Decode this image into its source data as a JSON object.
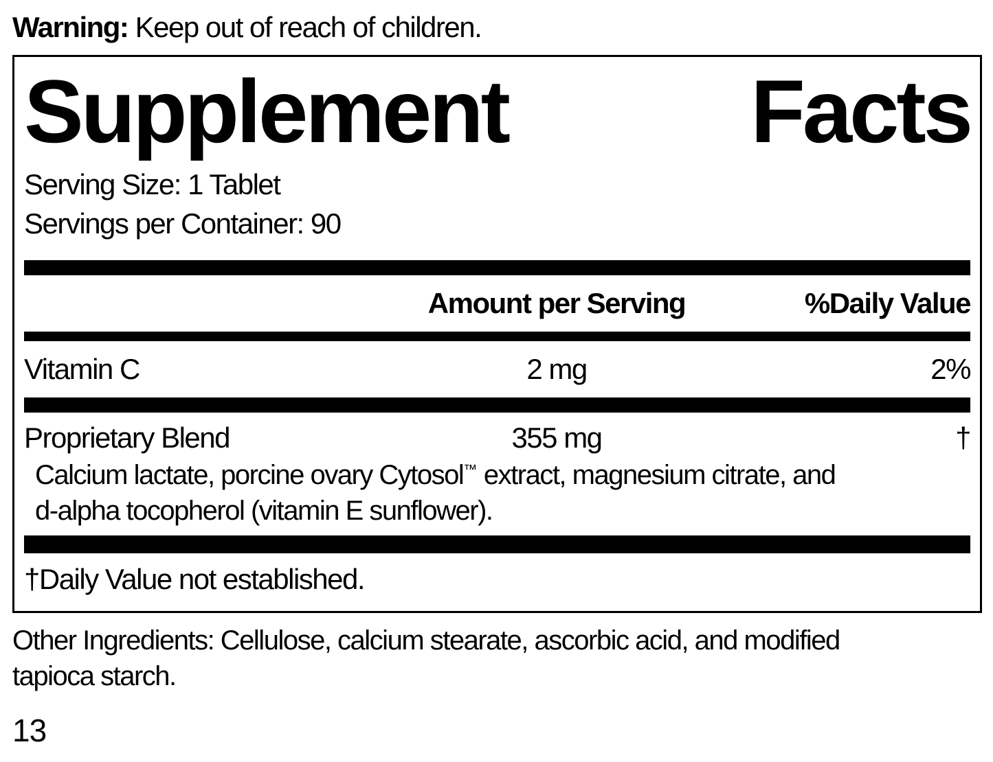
{
  "colors": {
    "ink": "#000000",
    "background": "#ffffff"
  },
  "warning": {
    "label": "Warning:",
    "text": "Keep out of reach of children."
  },
  "panel": {
    "title": {
      "word1": "Supplement",
      "word2": "Facts"
    },
    "serving_size": "Serving Size: 1 Tablet",
    "servings_per_container": "Servings per Container: 90",
    "columns": {
      "amount": "Amount per Serving",
      "daily_value": "%Daily Value"
    },
    "rows": [
      {
        "name": "Vitamin C",
        "amount": "2 mg",
        "daily_value": "2%"
      },
      {
        "name": "Proprietary Blend",
        "amount": "355 mg",
        "daily_value": "†"
      }
    ],
    "blend_description": {
      "line1_before_tm": "Calcium lactate, porcine ovary Cytosol",
      "trademark": "™",
      "line1_after_tm": " extract, magnesium citrate, and",
      "line2": "d-alpha tocopherol (vitamin E sunflower)."
    },
    "footnote": "†Daily Value not established."
  },
  "other_ingredients": {
    "line1": "Other Ingredients: Cellulose, calcium stearate, ascorbic acid, and modified",
    "line2": "tapioca starch."
  },
  "page_number": "13"
}
